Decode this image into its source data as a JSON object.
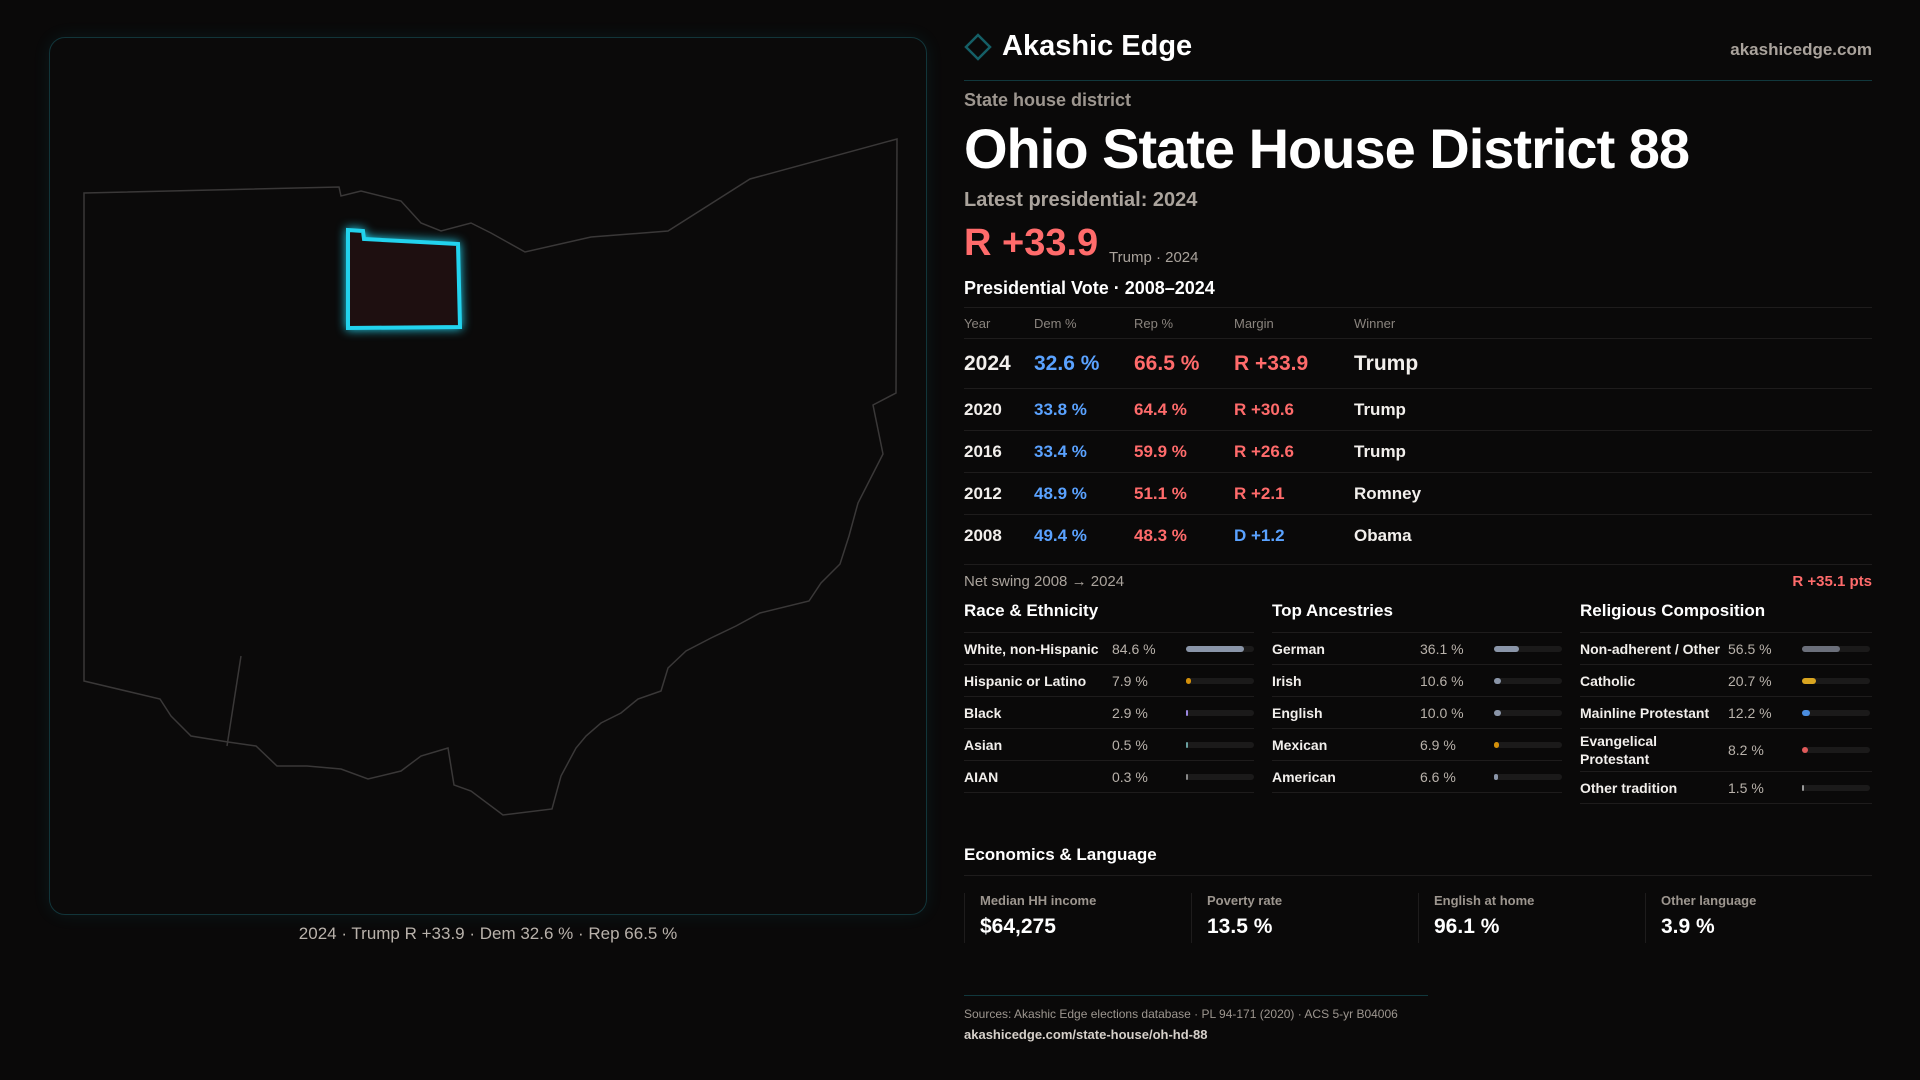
{
  "map": {
    "caption": "2024 · Trump R +33.9 · Dem 32.6 % · Rep 66.5 %",
    "highlight_color": "#22d3ee"
  },
  "header": {
    "brand": "Akashic Edge",
    "site": "akashicedge.com",
    "logo_icon": "diamond-icon"
  },
  "district": {
    "kind": "State house district",
    "title": "Ohio State House District 88",
    "latest": "Latest presidential: 2024",
    "margin": "R +33.9",
    "margin_sub": "Trump · 2024"
  },
  "colors": {
    "dem": "#5aa2ff",
    "rep": "#ff6b6b",
    "accent": "#22d3ee"
  },
  "votes": {
    "title": "Presidential Vote · 2008–2024",
    "headers": [
      "Year",
      "Dem %",
      "Rep %",
      "Margin",
      "Winner"
    ],
    "rows": [
      {
        "year": "2024",
        "dem": "32.6 %",
        "rep": "66.5 %",
        "margin": "R +33.9",
        "party": "rep",
        "winner": "Trump"
      },
      {
        "year": "2020",
        "dem": "33.8 %",
        "rep": "64.4 %",
        "margin": "R +30.6",
        "party": "rep",
        "winner": "Trump"
      },
      {
        "year": "2016",
        "dem": "33.4 %",
        "rep": "59.9 %",
        "margin": "R +26.6",
        "party": "rep",
        "winner": "Trump"
      },
      {
        "year": "2012",
        "dem": "48.9 %",
        "rep": "51.1 %",
        "margin": "R +2.1",
        "party": "rep",
        "winner": "Romney"
      },
      {
        "year": "2008",
        "dem": "49.4 %",
        "rep": "48.3 %",
        "margin": "D +1.2",
        "party": "dem",
        "winner": "Obama"
      }
    ],
    "swing_label": "Net swing 2008 → 2024",
    "swing_value": "R +35.1 pts"
  },
  "race": {
    "title": "Race & Ethnicity",
    "items": [
      {
        "label": "White, non-Hispanic",
        "pct": "84.6 %",
        "value": 84.6,
        "color": "#8a95a8"
      },
      {
        "label": "Hispanic or Latino",
        "pct": "7.9 %",
        "value": 7.9,
        "color": "#d4900a"
      },
      {
        "label": "Black",
        "pct": "2.9 %",
        "value": 2.9,
        "color": "#9b87e0"
      },
      {
        "label": "Asian",
        "pct": "0.5 %",
        "value": 0.5,
        "color": "#6aa0a0"
      },
      {
        "label": "AIAN",
        "pct": "0.3 %",
        "value": 0.3,
        "color": "#888"
      }
    ]
  },
  "ancestry": {
    "title": "Top Ancestries",
    "items": [
      {
        "label": "German",
        "pct": "36.1 %",
        "value": 36.1,
        "color": "#8a95a8"
      },
      {
        "label": "Irish",
        "pct": "10.6 %",
        "value": 10.6,
        "color": "#8a95a8"
      },
      {
        "label": "English",
        "pct": "10.0 %",
        "value": 10.0,
        "color": "#8a95a8"
      },
      {
        "label": "Mexican",
        "pct": "6.9 %",
        "value": 6.9,
        "color": "#d4900a"
      },
      {
        "label": "American",
        "pct": "6.6 %",
        "value": 6.6,
        "color": "#8a95a8"
      }
    ]
  },
  "religion": {
    "title": "Religious Composition",
    "items": [
      {
        "label": "Non-adherent / Other",
        "pct": "56.5 %",
        "value": 56.5,
        "color": "#6b6f7a"
      },
      {
        "label": "Catholic",
        "pct": "20.7 %",
        "value": 20.7,
        "color": "#d9a520"
      },
      {
        "label": "Mainline Protestant",
        "pct": "12.2 %",
        "value": 12.2,
        "color": "#4a8de0"
      },
      {
        "label": "Evangelical Protestant",
        "pct": "8.2 %",
        "value": 8.2,
        "color": "#e05a5a"
      },
      {
        "label": "Other tradition",
        "pct": "1.5 %",
        "value": 1.5,
        "color": "#999"
      }
    ]
  },
  "economics": {
    "title": "Economics & Language",
    "cards": [
      {
        "label": "Median HH income",
        "value": "$64,275"
      },
      {
        "label": "Poverty rate",
        "value": "13.5 %"
      },
      {
        "label": "English at home",
        "value": "96.1 %"
      },
      {
        "label": "Other language",
        "value": "3.9 %"
      }
    ]
  },
  "footer": {
    "sources": "Sources: Akashic Edge elections database · PL 94-171 (2020) · ACS 5-yr B04006",
    "url": "akashicedge.com/state-house/oh-hd-88"
  }
}
